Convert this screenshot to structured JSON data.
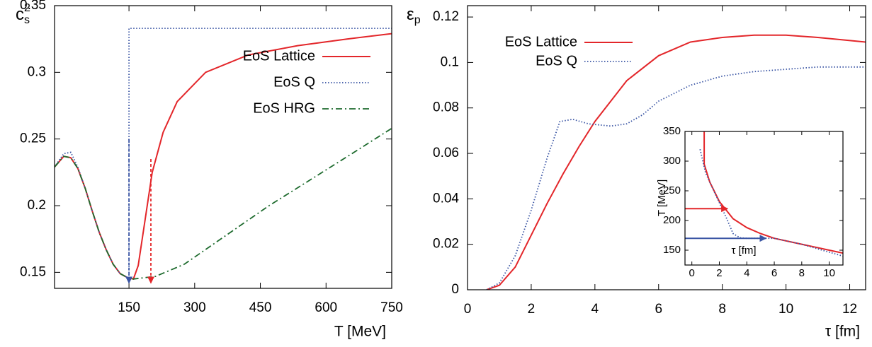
{
  "chart_data": [
    {
      "type": "line",
      "xlabel": "T [MeV]",
      "ylabel": "c",
      "ylabel_sub": "s",
      "ylabel_sup": "2",
      "xlim": [
        -20,
        750
      ],
      "ylim": [
        0.138,
        0.35
      ],
      "xticks": [
        150,
        300,
        450,
        600,
        750
      ],
      "yticks": [
        0.15,
        0.2,
        0.25,
        0.3,
        0.35
      ],
      "legend": "center right",
      "series": [
        {
          "name": "EoS Lattice",
          "color": "#e3262a",
          "style": "solid",
          "x": [
            -20,
            1,
            17,
            33,
            50,
            66,
            82,
            98,
            114,
            130,
            147,
            160,
            171,
            187,
            203,
            228,
            260,
            325,
            422,
            535,
            648,
            750
          ],
          "values": [
            0.229,
            0.237,
            0.236,
            0.228,
            0.213,
            0.196,
            0.18,
            0.167,
            0.156,
            0.149,
            0.146,
            0.145,
            0.155,
            0.19,
            0.225,
            0.255,
            0.278,
            0.3,
            0.313,
            0.32,
            0.325,
            0.329
          ]
        },
        {
          "name": "EoS Q",
          "color": "#3a55a4",
          "style": "dotted",
          "x": [
            -20,
            1,
            17,
            33,
            50,
            66,
            82,
            98,
            114,
            130,
            147,
            150,
            150,
            750
          ],
          "values": [
            0.229,
            0.239,
            0.24,
            0.229,
            0.213,
            0.196,
            0.18,
            0.167,
            0.156,
            0.149,
            0.146,
            0.146,
            0.333,
            0.333
          ]
        },
        {
          "name": "EoS HRG",
          "color": "#1e6b2e",
          "style": "dashdot",
          "x": [
            -20,
            1,
            17,
            33,
            50,
            66,
            82,
            98,
            114,
            130,
            147,
            160,
            211,
            276,
            373,
            470,
            567,
            664,
            750
          ],
          "values": [
            0.229,
            0.237,
            0.236,
            0.228,
            0.213,
            0.196,
            0.18,
            0.167,
            0.156,
            0.149,
            0.146,
            0.145,
            0.147,
            0.156,
            0.178,
            0.2,
            0.22,
            0.24,
            0.258
          ]
        }
      ],
      "arrows": [
        {
          "color": "#3a55a4",
          "x": 150,
          "y_from": 0.25,
          "y_to": 0.142
        },
        {
          "color": "#e3262a",
          "x": 200,
          "y_from": 0.235,
          "y_to": 0.142
        }
      ]
    },
    {
      "type": "line",
      "xlabel": "τ [fm]",
      "ylabel": "ε",
      "ylabel_sub": "p",
      "xlim": [
        0,
        12.5
      ],
      "ylim": [
        0,
        0.125
      ],
      "xticks": [
        0,
        2,
        4,
        6,
        8,
        10,
        12
      ],
      "yticks": [
        0,
        0.02,
        0.04,
        0.06,
        0.08,
        0.1,
        0.12
      ],
      "legend": "upper left",
      "series": [
        {
          "name": "EoS Lattice",
          "color": "#e3262a",
          "style": "solid",
          "x": [
            0.6,
            1,
            1.5,
            2,
            2.5,
            3,
            3.5,
            4,
            5,
            6,
            7,
            8,
            9,
            10,
            11,
            12.5
          ],
          "values": [
            0,
            0.002,
            0.01,
            0.024,
            0.038,
            0.051,
            0.063,
            0.074,
            0.092,
            0.103,
            0.109,
            0.111,
            0.112,
            0.112,
            0.111,
            0.109
          ]
        },
        {
          "name": "EoS Q",
          "color": "#3a55a4",
          "style": "dotted",
          "x": [
            0.6,
            1,
            1.5,
            2,
            2.5,
            2.9,
            3.3,
            3.8,
            4.5,
            5,
            5.5,
            6,
            7,
            8,
            9,
            10,
            11,
            12.5
          ],
          "values": [
            0,
            0.003,
            0.015,
            0.035,
            0.058,
            0.074,
            0.075,
            0.073,
            0.072,
            0.073,
            0.077,
            0.083,
            0.09,
            0.094,
            0.096,
            0.097,
            0.098,
            0.098
          ]
        }
      ]
    },
    {
      "type": "line",
      "xlabel": "τ [fm]",
      "ylabel": "T [MeV]",
      "xlim": [
        -0.5,
        11
      ],
      "ylim": [
        125,
        350
      ],
      "xticks": [
        0,
        2,
        4,
        6,
        8,
        10
      ],
      "yticks": [
        150,
        200,
        250,
        300,
        350
      ],
      "series": [
        {
          "color": "#e3262a",
          "style": "solid",
          "x": [
            0.9,
            0.9,
            1.3,
            2,
            3,
            4,
            5,
            6,
            8,
            10,
            11
          ],
          "values": [
            350,
            295,
            265,
            232,
            203,
            188,
            178,
            170,
            160,
            150,
            145
          ]
        },
        {
          "color": "#3a55a4",
          "style": "dotted",
          "x": [
            0.6,
            1,
            1.5,
            2,
            2.5,
            3,
            3.5,
            4,
            6,
            8,
            11
          ],
          "values": [
            320,
            280,
            255,
            230,
            205,
            178,
            171,
            170,
            170,
            160,
            140
          ]
        }
      ],
      "harrows": [
        {
          "color": "#e3262a",
          "y": 220,
          "x_from": -0.5,
          "x_to": 2.6
        },
        {
          "color": "#3a55a4",
          "y": 170,
          "x_from": -0.5,
          "x_to": 5.4
        }
      ]
    }
  ]
}
